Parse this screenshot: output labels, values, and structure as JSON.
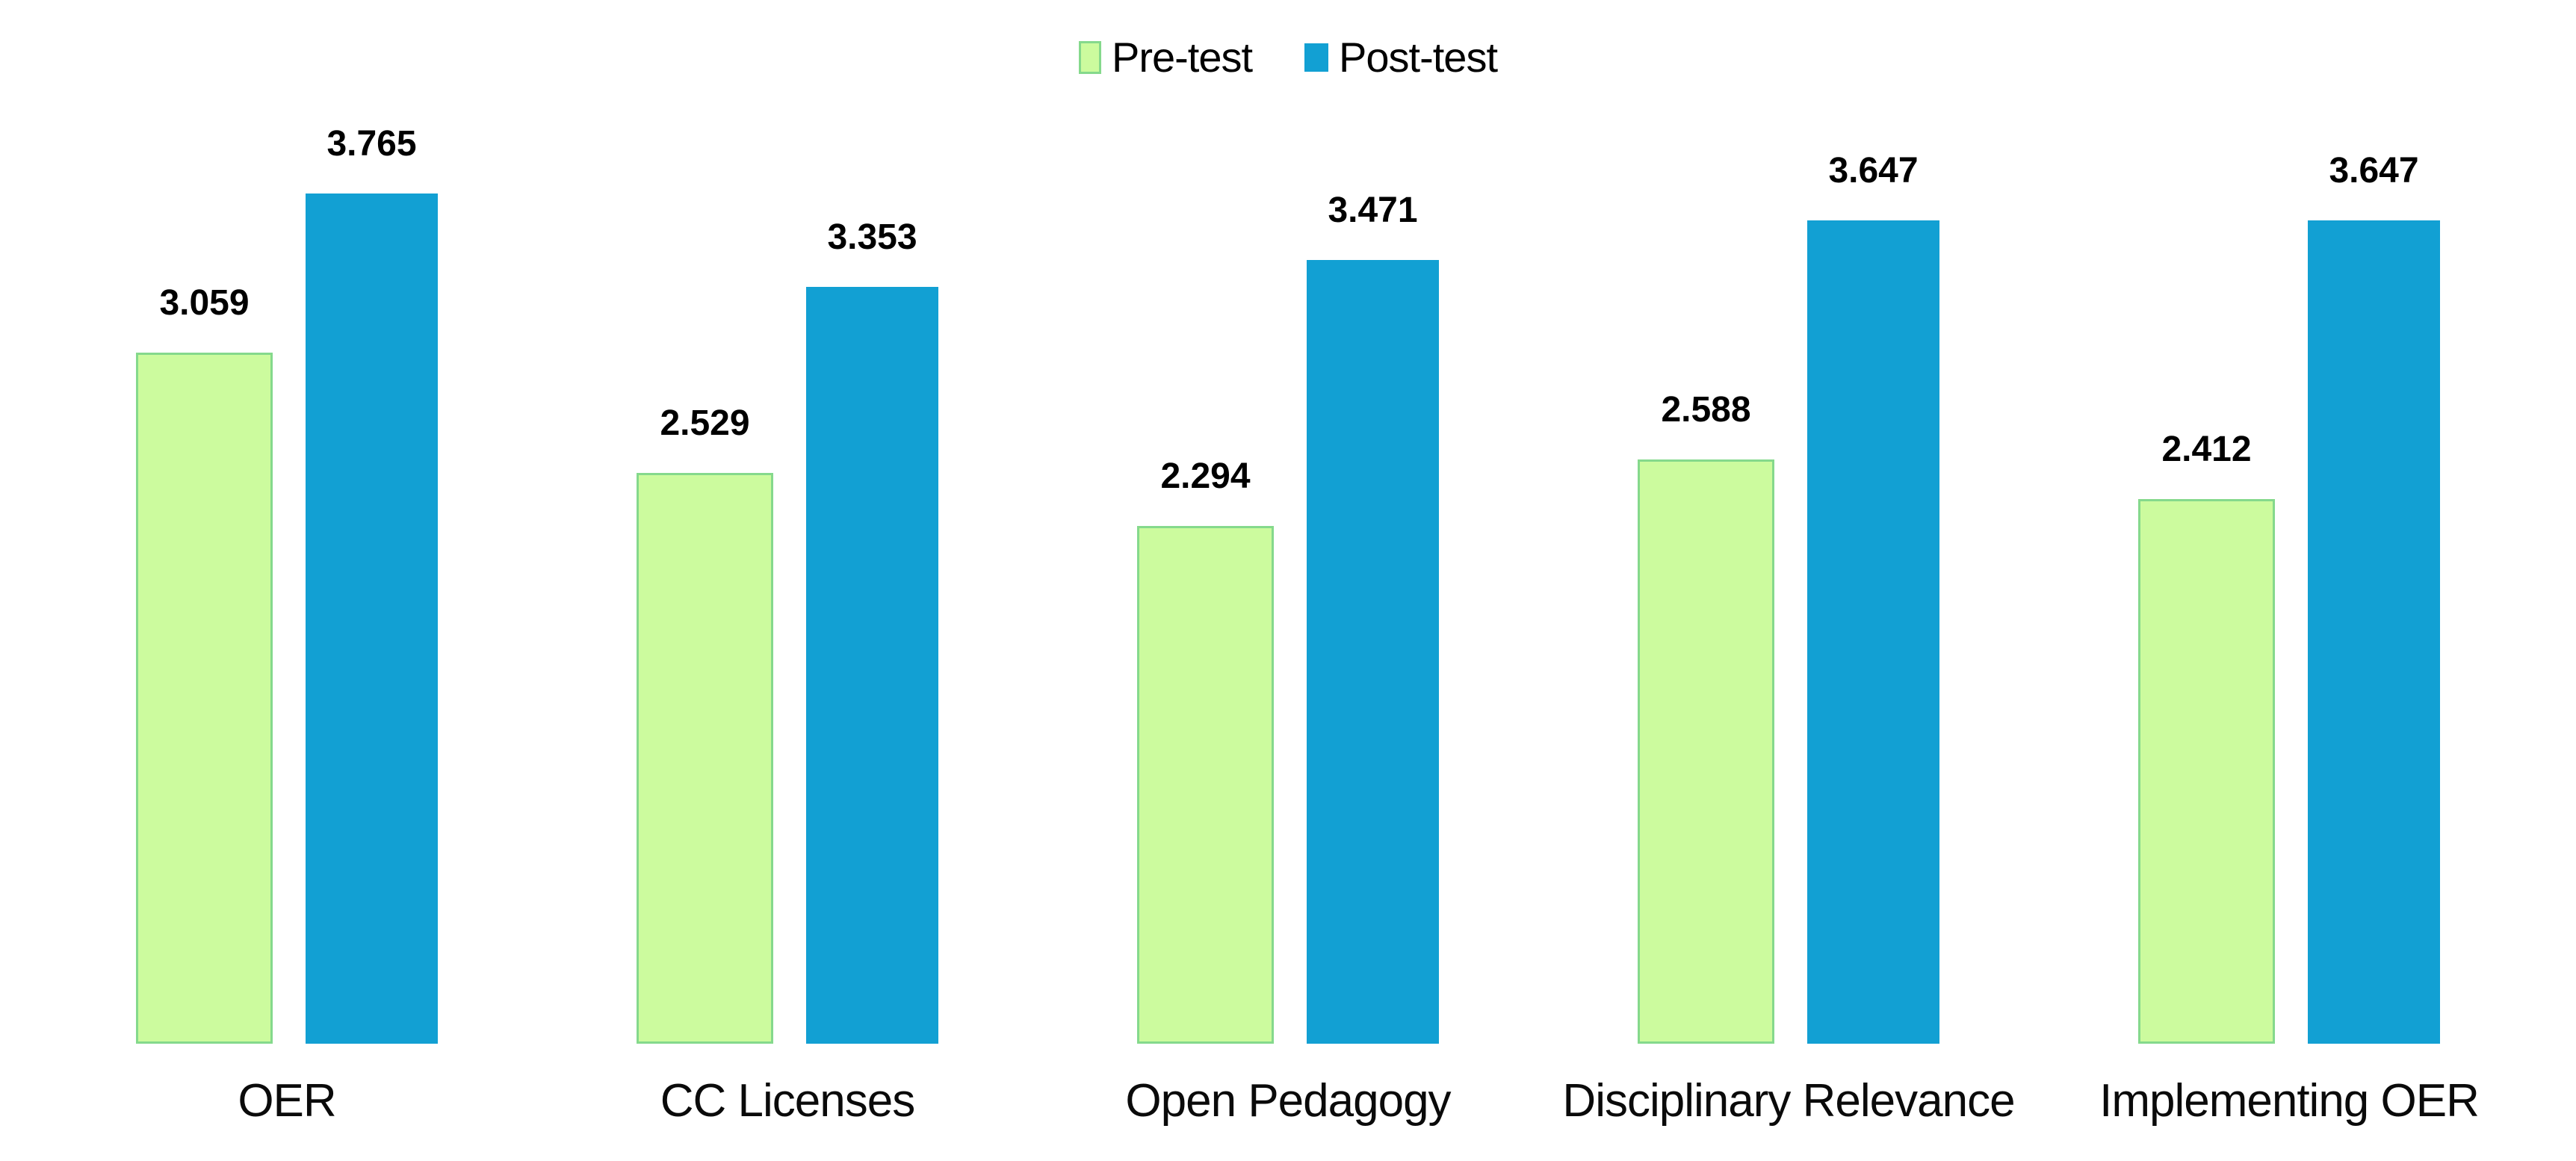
{
  "chart_data": {
    "type": "bar",
    "title": "",
    "categories": [
      "OER",
      "CC Licenses",
      "Open Pedagogy",
      "Disciplinary Relevance",
      "Implementing OER"
    ],
    "series": [
      {
        "name": "Pre-test",
        "values": [
          3.059,
          2.529,
          2.294,
          2.588,
          2.412
        ],
        "labels": [
          "3.059",
          "2.529",
          "2.294",
          "2.588",
          "2.412"
        ]
      },
      {
        "name": "Post-test",
        "values": [
          3.765,
          3.353,
          3.471,
          3.647,
          3.647
        ],
        "labels": [
          "3.765",
          "3.353",
          "3.471",
          "3.647",
          "3.647"
        ]
      }
    ],
    "xlabel": "",
    "ylabel": "",
    "ylim": [
      0,
      4
    ],
    "grid": false,
    "axes_visible": false,
    "legend_position": "top-center",
    "value_labels_shown": true
  },
  "colors": {
    "pretest_fill": "#ccfb9e",
    "pretest_border": "#85d98c",
    "posttest_fill": "#12a0d3",
    "value_label_text": "#000000",
    "category_label_text": "#0a0a0a",
    "background": "#ffffff"
  }
}
